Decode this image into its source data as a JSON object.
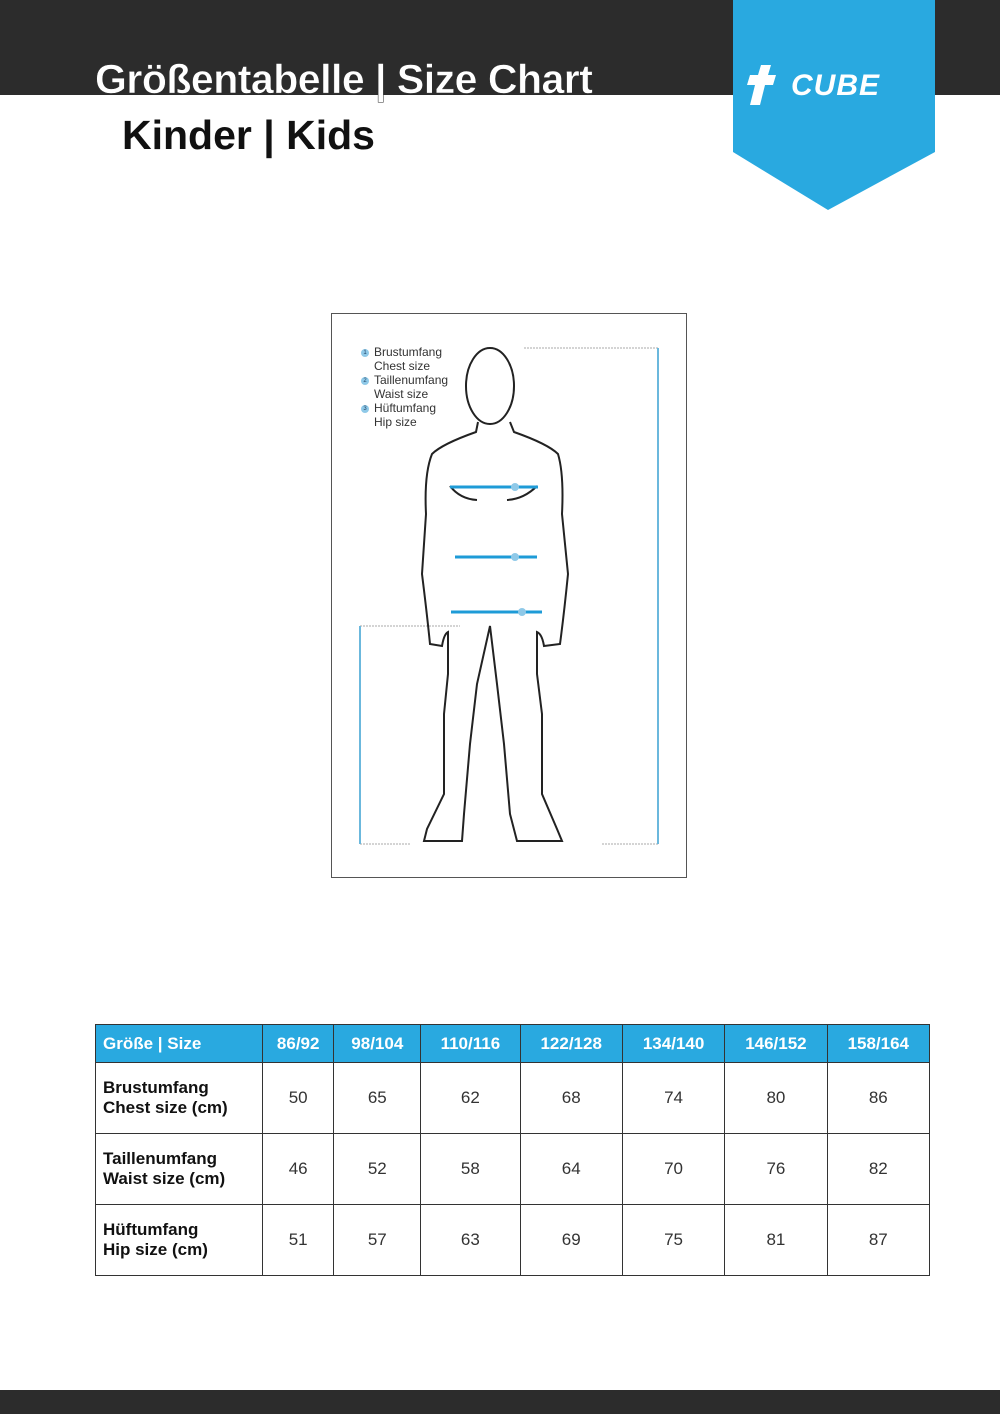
{
  "header": {
    "title": "Größentabelle | Size Chart",
    "subtitle": "Kinder | Kids",
    "brand": "CUBE",
    "brand_color": "#29a9e0"
  },
  "figure": {
    "legend": [
      {
        "num": "1",
        "de": "Brustumfang",
        "en": "Chest size"
      },
      {
        "num": "2",
        "de": "Taillenumfang",
        "en": "Waist size"
      },
      {
        "num": "3",
        "de": "Hüftumfang",
        "en": "Hip size"
      }
    ]
  },
  "table": {
    "header": [
      "Größe | Size",
      "86/92",
      "98/104",
      "110/116",
      "122/128",
      "134/140",
      "146/152",
      "158/164"
    ],
    "rows": [
      {
        "label_de": "Brustumfang",
        "label_en": "Chest size (cm)",
        "values": [
          "50",
          "65",
          "62",
          "68",
          "74",
          "80",
          "86"
        ]
      },
      {
        "label_de": "Taillenumfang",
        "label_en": "Waist size (cm)",
        "values": [
          "46",
          "52",
          "58",
          "64",
          "70",
          "76",
          "82"
        ]
      },
      {
        "label_de": "Hüftumfang",
        "label_en": "Hip size (cm)",
        "values": [
          "51",
          "57",
          "63",
          "69",
          "75",
          "81",
          "87"
        ]
      }
    ]
  }
}
